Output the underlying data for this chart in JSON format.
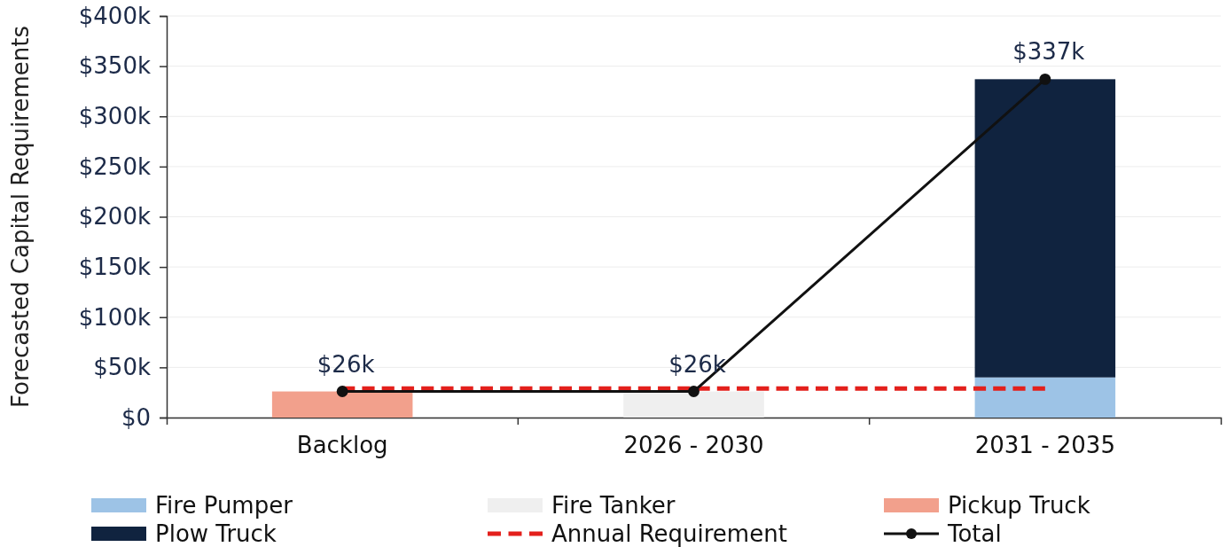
{
  "chart_data": {
    "type": "bar",
    "stacked": true,
    "categories": [
      "Backlog",
      "2026 - 2030",
      "2031 - 2035"
    ],
    "ylabel": "Forecasted Capital Requirements",
    "ylim": [
      0,
      400
    ],
    "yticks": [
      {
        "value": 0,
        "label": "$0"
      },
      {
        "value": 50,
        "label": "$50k"
      },
      {
        "value": 100,
        "label": "$100k"
      },
      {
        "value": 150,
        "label": "$150k"
      },
      {
        "value": 200,
        "label": "$200k"
      },
      {
        "value": 250,
        "label": "$250k"
      },
      {
        "value": 300,
        "label": "$300k"
      },
      {
        "value": 350,
        "label": "$350k"
      },
      {
        "value": 400,
        "label": "$400k"
      }
    ],
    "grid": "y",
    "legend": "bottom",
    "series": [
      {
        "name": "Fire Pumper",
        "color": "#9dc3e6",
        "values": [
          null,
          null,
          40
        ]
      },
      {
        "name": "Fire Tanker",
        "color": "#efefef",
        "values": [
          null,
          26,
          null
        ]
      },
      {
        "name": "Pickup Truck",
        "color": "#f2a08c",
        "values": [
          26,
          null,
          null
        ]
      },
      {
        "name": "Plow Truck",
        "color": "#10233f",
        "values": [
          null,
          null,
          297
        ]
      },
      {
        "name": "Annual Requirement",
        "type": "line",
        "color": "#e3201c",
        "line_style": "dashed",
        "marker": "none",
        "values": [
          29,
          29,
          29
        ]
      },
      {
        "name": "Total",
        "type": "line",
        "color": "#111111",
        "line_style": "solid",
        "marker": "circle",
        "values": [
          26,
          26,
          337
        ],
        "value_labels": [
          "$26k",
          "$26k",
          "$337k"
        ]
      }
    ]
  }
}
